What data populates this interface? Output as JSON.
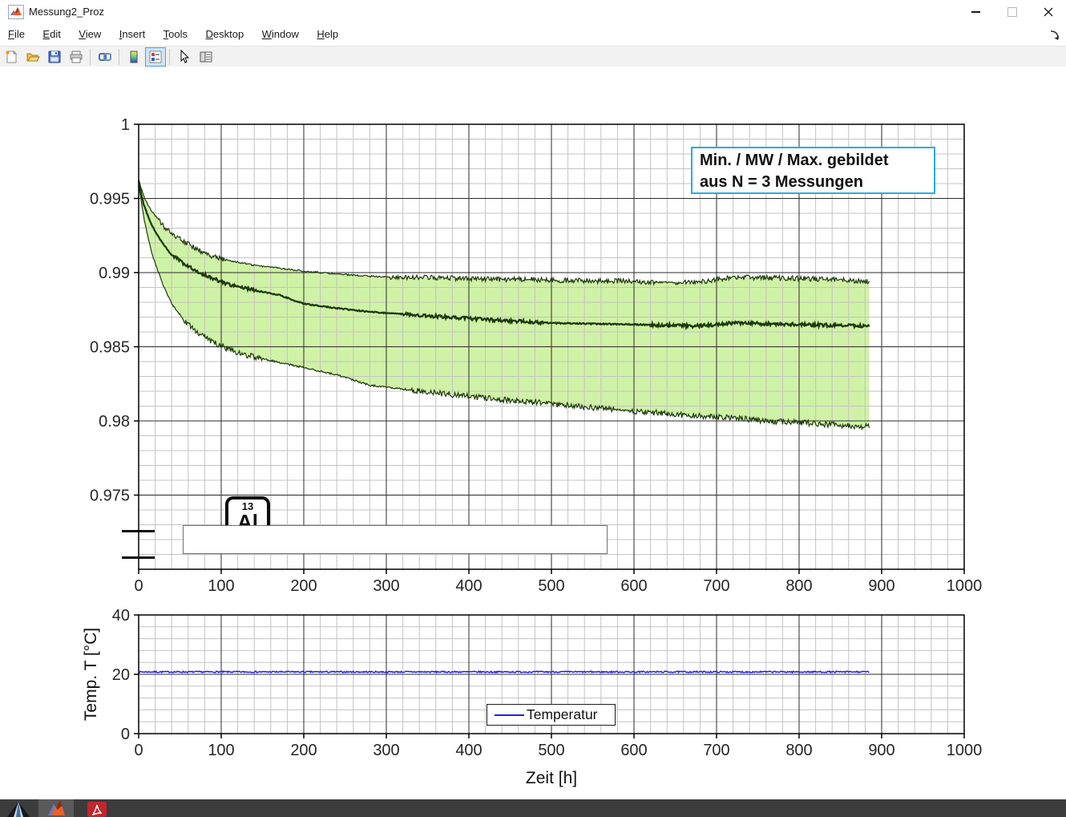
{
  "window": {
    "title": "Messung2_Proz"
  },
  "menu_bar": {
    "items": [
      "File",
      "Edit",
      "View",
      "Insert",
      "Tools",
      "Desktop",
      "Window",
      "Help"
    ]
  },
  "toolbar": {
    "buttons": [
      "new-figure",
      "open-file",
      "save-figure",
      "print-figure",
      "link-plot",
      "insert-colorbar",
      "insert-legend",
      "edit-plot",
      "property-editor"
    ],
    "active_button": "insert-legend"
  },
  "figure": {
    "annotation_box": {
      "line1": "Min. / MW / Max. gebildet",
      "line2": "aus N = 3 Messungen",
      "border_color": "#29abe2"
    },
    "element_badge": {
      "number": "13",
      "symbol": "Al"
    }
  },
  "taskbar": {
    "icons": [
      "app-pyramid",
      "matlab",
      "adobe-acrobat"
    ]
  },
  "chart_data": [
    {
      "type": "area",
      "title": "",
      "xlabel": "",
      "ylabel": "",
      "xlim": [
        0,
        1000
      ],
      "ylim": [
        0.97,
        1.0
      ],
      "xticks": [
        0,
        100,
        200,
        300,
        400,
        500,
        600,
        700,
        800,
        900,
        1000
      ],
      "xtick_labels": [
        "0",
        "100",
        "200",
        "300",
        "400",
        "500",
        "600",
        "700",
        "800",
        "900",
        "1000"
      ],
      "ytick_values": [
        1,
        0.995,
        0.99,
        0.985,
        0.98,
        0.975
      ],
      "ytick_labels": [
        "1",
        "0.995",
        "0.99",
        "0.985",
        "0.98",
        "0.975"
      ],
      "x_minor": 20,
      "y_minor": 0.001,
      "grid": true,
      "band_fill": "#d0f2a6",
      "stroke": "#1d3a0c",
      "x_end": 885,
      "x": [
        0,
        3,
        6,
        10,
        15,
        22,
        30,
        40,
        55,
        70,
        90,
        110,
        140,
        170,
        200,
        240,
        280,
        320,
        360,
        400,
        450,
        500,
        550,
        600,
        640,
        670,
        690,
        720,
        760,
        800,
        840,
        885
      ],
      "series": [
        {
          "name": "Max",
          "values": [
            0.9963,
            0.9957,
            0.9952,
            0.9947,
            0.9942,
            0.9937,
            0.9931,
            0.9926,
            0.9921,
            0.9916,
            0.9911,
            0.9908,
            0.9905,
            0.9903,
            0.9901,
            0.9899,
            0.98975,
            0.9897,
            0.98965,
            0.9896,
            0.98955,
            0.9895,
            0.98945,
            0.9894,
            0.98935,
            0.9893,
            0.98945,
            0.9897,
            0.98965,
            0.9896,
            0.98955,
            0.9894
          ]
        },
        {
          "name": "MW",
          "values": [
            0.9962,
            0.9953,
            0.9946,
            0.994,
            0.9933,
            0.9926,
            0.9919,
            0.9912,
            0.9906,
            0.9901,
            0.9896,
            0.9892,
            0.9888,
            0.9885,
            0.9879,
            0.9876,
            0.98735,
            0.9872,
            0.98705,
            0.9869,
            0.98675,
            0.9866,
            0.98655,
            0.9865,
            0.98645,
            0.9864,
            0.98645,
            0.9866,
            0.98655,
            0.9865,
            0.98645,
            0.9864
          ]
        },
        {
          "name": "Min",
          "values": [
            0.996,
            0.9948,
            0.9938,
            0.9927,
            0.9915,
            0.9903,
            0.9891,
            0.9879,
            0.9868,
            0.986,
            0.9853,
            0.9848,
            0.9843,
            0.98395,
            0.9836,
            0.9831,
            0.9824,
            0.98215,
            0.9819,
            0.98165,
            0.9814,
            0.98115,
            0.9809,
            0.98065,
            0.9805,
            0.98035,
            0.9803,
            0.9802,
            0.98,
            0.9799,
            0.97975,
            0.9796
          ]
        }
      ]
    },
    {
      "type": "line",
      "title": "",
      "xlabel": "Zeit [h]",
      "ylabel": "Temp. T [°C]",
      "xlim": [
        0,
        1000
      ],
      "ylim": [
        0,
        40
      ],
      "xticks": [
        0,
        100,
        200,
        300,
        400,
        500,
        600,
        700,
        800,
        900,
        1000
      ],
      "xtick_labels": [
        "0",
        "100",
        "200",
        "300",
        "400",
        "500",
        "600",
        "700",
        "800",
        "900",
        "1000"
      ],
      "ytick_values": [
        0,
        20,
        40
      ],
      "ytick_labels": [
        "0",
        "20",
        "40"
      ],
      "x_minor": 20,
      "y_minor": 4,
      "grid": true,
      "x_end": 885,
      "series": [
        {
          "name": "Temperatur",
          "color": "#2222dd",
          "mean_value": 20.8
        }
      ],
      "legend": {
        "labels": [
          "Temperatur"
        ],
        "position": "south"
      }
    }
  ]
}
